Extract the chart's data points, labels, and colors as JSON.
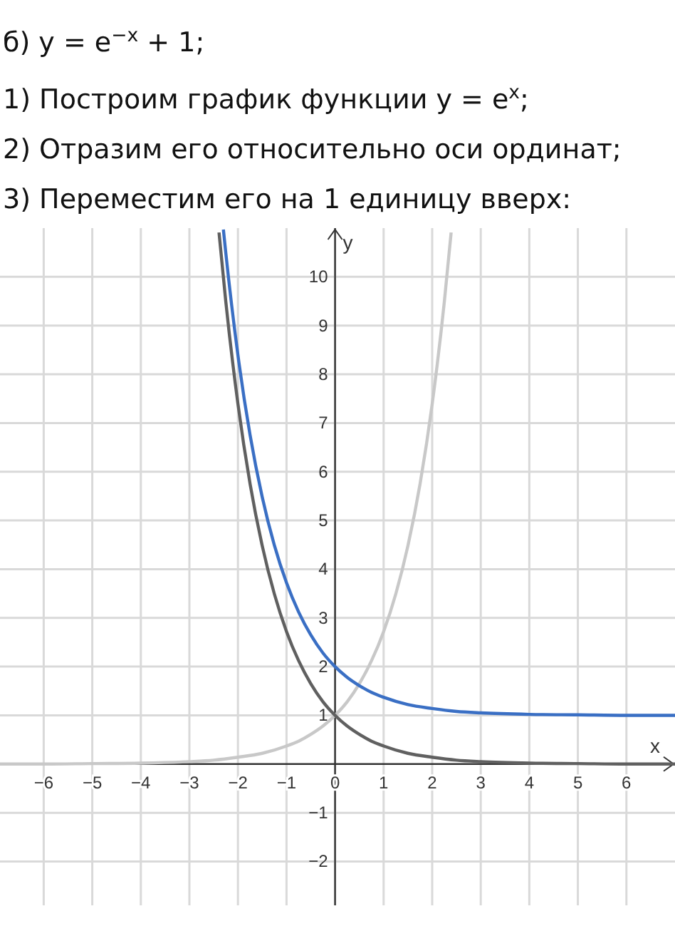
{
  "chart_data": {
    "type": "line",
    "title": "б) y = e$^{−x}$ + 1;",
    "annotations": [
      "1) Построим график функции y = e$^{x}$;",
      "2) Отразим его относительно оси ординат;",
      "3) Переместим его на 1 единицу вверх:"
    ],
    "xlabel": "x",
    "ylabel": "y",
    "xlim": [
      -6.9,
      7
    ],
    "ylim": [
      -2.9,
      11
    ],
    "xticks": [
      -6,
      -5,
      -4,
      -3,
      -2,
      -1,
      0,
      1,
      2,
      3,
      4,
      5,
      6
    ],
    "yticks": [
      -2,
      -1,
      1,
      2,
      3,
      4,
      5,
      6,
      7,
      8,
      9,
      10
    ],
    "grid": true,
    "marker": "none",
    "line_style": "solid",
    "series": [
      {
        "color": "#c8c8c8",
        "x": [
          -6.9,
          -6,
          -5,
          -4,
          -3,
          -2.5,
          -2,
          -1.5,
          -1,
          -0.75,
          -0.5,
          -0.25,
          0,
          0.25,
          0.5,
          0.75,
          1,
          1.25,
          1.5,
          1.75,
          2,
          2.25,
          2.39
        ],
        "values": [
          0,
          0,
          0.01,
          0.02,
          0.05,
          0.08,
          0.14,
          0.22,
          0.37,
          0.47,
          0.61,
          0.78,
          1,
          1.28,
          1.65,
          2.12,
          2.72,
          3.49,
          4.48,
          5.75,
          7.39,
          9.49,
          10.91
        ]
      },
      {
        "color": "#606060",
        "x": [
          -2.39,
          -2.25,
          -2,
          -1.75,
          -1.5,
          -1.25,
          -1,
          -0.75,
          -0.5,
          -0.25,
          0,
          0.25,
          0.5,
          0.75,
          1,
          1.5,
          2,
          2.5,
          3,
          4,
          5,
          6,
          7
        ],
        "values": [
          10.91,
          9.49,
          7.39,
          5.75,
          4.48,
          3.49,
          2.72,
          2.12,
          1.65,
          1.28,
          1,
          0.78,
          0.61,
          0.47,
          0.37,
          0.22,
          0.14,
          0.08,
          0.05,
          0.02,
          0.01,
          0,
          0
        ]
      },
      {
        "color": "#3a6fc4",
        "x": [
          -2.3,
          -2.25,
          -2,
          -1.75,
          -1.5,
          -1.25,
          -1,
          -0.75,
          -0.5,
          -0.25,
          0,
          0.25,
          0.5,
          0.75,
          1,
          1.5,
          2,
          2.5,
          3,
          4,
          5,
          6,
          7
        ],
        "values": [
          10.97,
          10.49,
          8.39,
          6.75,
          5.48,
          4.49,
          3.72,
          3.12,
          2.65,
          2.28,
          2,
          1.78,
          1.61,
          1.47,
          1.37,
          1.22,
          1.14,
          1.08,
          1.05,
          1.02,
          1.01,
          1,
          1
        ]
      }
    ]
  }
}
